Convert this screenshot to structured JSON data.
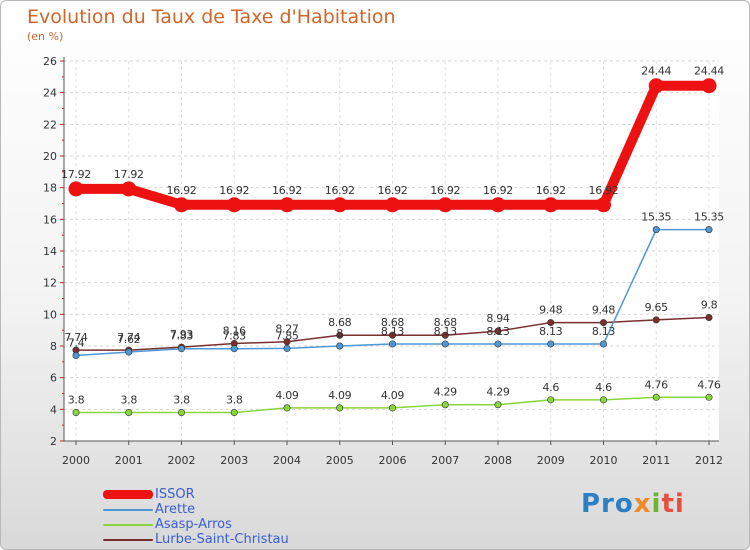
{
  "logo": {
    "text_part1": "Pro",
    "text_part2": "x",
    "text_part3": "i",
    "text_part4": "ti"
  },
  "chart_data": {
    "type": "line",
    "title": "Evolution du Taux de Taxe d'Habitation",
    "ylabel": "(en %)",
    "xlabel": "",
    "ylim": [
      2,
      26
    ],
    "yticks": [
      "2",
      "4",
      "6",
      "8",
      "10",
      "12",
      "14",
      "16",
      "18",
      "20",
      "22",
      "24",
      "26"
    ],
    "categories": [
      "2000",
      "2001",
      "2002",
      "2003",
      "2004",
      "2005",
      "2006",
      "2007",
      "2008",
      "2009",
      "2010",
      "2011",
      "2012"
    ],
    "grid": true,
    "legend": "bottom-left",
    "series": [
      {
        "name": "ISSOR",
        "color": "#ee1111",
        "values": [
          17.92,
          17.92,
          16.92,
          16.92,
          16.92,
          16.92,
          16.92,
          16.92,
          16.92,
          16.92,
          16.92,
          24.44,
          24.44
        ],
        "labels": [
          "17.92",
          "17.92",
          "16.92",
          "16.92",
          "16.92",
          "16.92",
          "16.92",
          "16.92",
          "16.92",
          "16.92",
          "16.92",
          "24.44",
          "24.44"
        ]
      },
      {
        "name": "Arette",
        "color": "#4f97d4",
        "values": [
          7.4,
          7.62,
          7.83,
          7.83,
          7.85,
          8.0,
          8.13,
          8.13,
          8.13,
          8.13,
          8.13,
          15.35,
          15.35
        ],
        "labels": [
          "7.4",
          "7.62",
          "7.83",
          "7.83",
          "7.85",
          "8",
          "8.13",
          "8.13",
          "8.13",
          "8.13",
          "8.13",
          "15.35",
          "15.35"
        ]
      },
      {
        "name": "Asasp-Arros",
        "color": "#89d63c",
        "values": [
          3.8,
          3.8,
          3.8,
          3.8,
          4.09,
          4.09,
          4.09,
          4.29,
          4.29,
          4.6,
          4.6,
          4.76,
          4.76
        ],
        "labels": [
          "3.8",
          "3.8",
          "3.8",
          "3.8",
          "4.09",
          "4.09",
          "4.09",
          "4.29",
          "4.29",
          "4.6",
          "4.6",
          "4.76",
          "4.76"
        ]
      },
      {
        "name": "Lurbe-Saint-Christau",
        "color": "#7a2f2f",
        "values": [
          7.74,
          7.74,
          7.93,
          8.16,
          8.27,
          8.68,
          8.68,
          8.68,
          8.94,
          9.48,
          9.48,
          9.65,
          9.8
        ],
        "labels": [
          "7.74",
          "7.74",
          "7.93",
          "8.16",
          "8.27",
          "8.68",
          "8.68",
          "8.68",
          "8.94",
          "9.48",
          "9.48",
          "9.65",
          "9.8"
        ]
      }
    ]
  }
}
